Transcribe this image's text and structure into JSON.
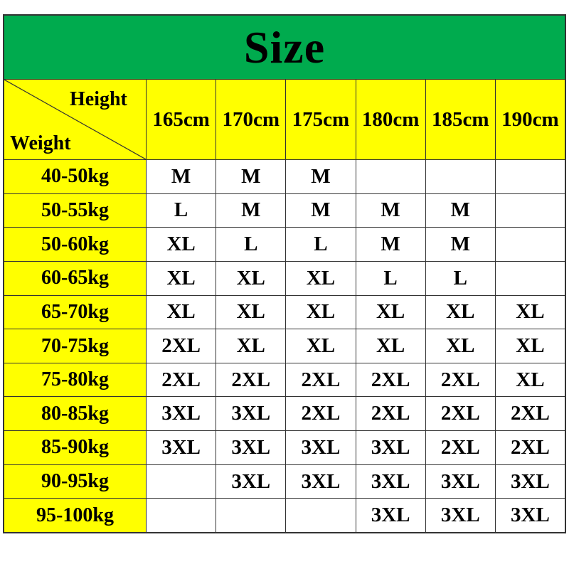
{
  "title": "Size",
  "corner": {
    "top_label": "Height",
    "bottom_label": "Weight"
  },
  "colors": {
    "banner_green": "#00AB4E",
    "header_yellow": "#FFFF00",
    "cell_white": "#FFFFFF",
    "border": "#333333",
    "text": "#000000"
  },
  "chart_data": {
    "type": "table",
    "title": "Size",
    "column_axis_label": "Height",
    "row_axis_label": "Weight",
    "columns": [
      "165cm",
      "170cm",
      "175cm",
      "180cm",
      "185cm",
      "190cm"
    ],
    "row_labels": [
      "40-50kg",
      "50-55kg",
      "50-60kg",
      "60-65kg",
      "65-70kg",
      "70-75kg",
      "75-80kg",
      "80-85kg",
      "85-90kg",
      "90-95kg",
      "95-100kg"
    ],
    "values": [
      [
        "M",
        "M",
        "M",
        "",
        "",
        ""
      ],
      [
        "L",
        "M",
        "M",
        "M",
        "M",
        ""
      ],
      [
        "XL",
        "L",
        "L",
        "M",
        "M",
        ""
      ],
      [
        "XL",
        "XL",
        "XL",
        "L",
        "L",
        ""
      ],
      [
        "XL",
        "XL",
        "XL",
        "XL",
        "XL",
        "XL"
      ],
      [
        "2XL",
        "XL",
        "XL",
        "XL",
        "XL",
        "XL"
      ],
      [
        "2XL",
        "2XL",
        "2XL",
        "2XL",
        "2XL",
        "XL"
      ],
      [
        "3XL",
        "3XL",
        "2XL",
        "2XL",
        "2XL",
        "2XL"
      ],
      [
        "3XL",
        "3XL",
        "3XL",
        "3XL",
        "2XL",
        "2XL"
      ],
      [
        "",
        "3XL",
        "3XL",
        "3XL",
        "3XL",
        "3XL"
      ],
      [
        "",
        "",
        "",
        "3XL",
        "3XL",
        "3XL"
      ]
    ]
  }
}
